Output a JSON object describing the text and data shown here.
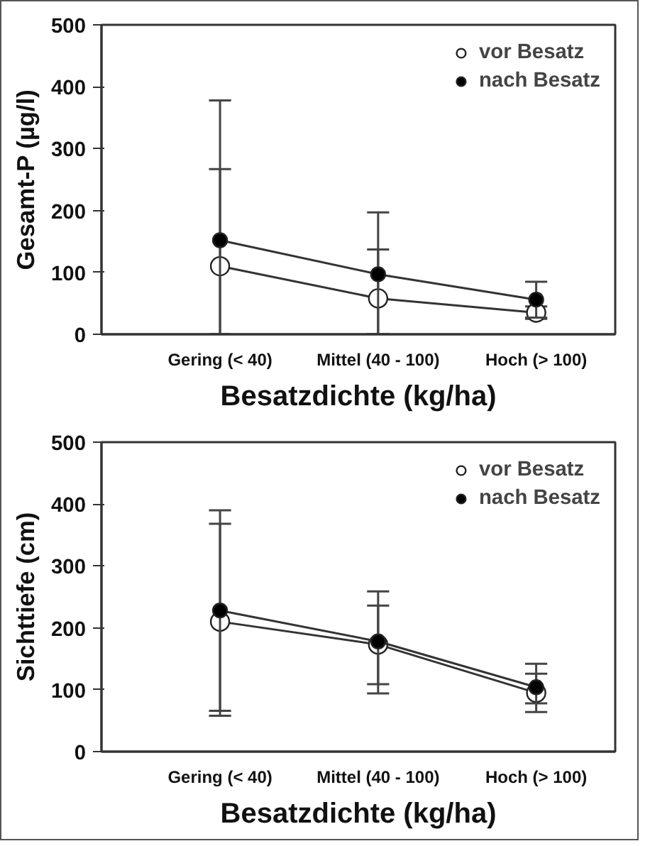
{
  "chart_data": [
    {
      "type": "line",
      "xlabel": "Besatzdichte (kg/ha)",
      "ylabel": "Gesamt-P (µg/l)",
      "categories": [
        "Gering (< 40)",
        "Mittel (40 - 100)",
        "Hoch (> 100)"
      ],
      "ylim": [
        0,
        500
      ],
      "yticks": [
        0,
        100,
        200,
        300,
        400,
        500
      ],
      "grid": false,
      "legend": "top right",
      "marker": "circle",
      "line_style": "solid",
      "series": [
        {
          "name": "vor Besatz",
          "color": "#ffffff",
          "values": [
            110,
            58,
            35
          ],
          "errors": [
            [
              0,
              267
            ],
            [
              0,
              137
            ],
            [
              25,
              45
            ]
          ]
        },
        {
          "name": "nach Besatz",
          "color": "#000000",
          "values": [
            152,
            97,
            56
          ],
          "errors": [
            [
              0,
              378
            ],
            [
              0,
              197
            ],
            [
              27,
              85
            ]
          ]
        }
      ]
    },
    {
      "type": "line",
      "xlabel": "Besatzdichte (kg/ha)",
      "ylabel": "Sichttiefe (cm)",
      "categories": [
        "Gering (< 40)",
        "Mittel (40 - 100)",
        "Hoch (> 100)"
      ],
      "ylim": [
        0,
        500
      ],
      "yticks": [
        0,
        100,
        200,
        300,
        400,
        500
      ],
      "grid": false,
      "legend": "top right",
      "marker": "circle",
      "line_style": "solid",
      "series": [
        {
          "name": "vor Besatz",
          "color": "#ffffff",
          "values": [
            210,
            173,
            95
          ],
          "errors": [
            [
              58,
              368
            ],
            [
              109,
              236
            ],
            [
              78,
              126
            ]
          ]
        },
        {
          "name": "nach Besatz",
          "color": "#000000",
          "values": [
            228,
            178,
            104
          ],
          "errors": [
            [
              66,
              390
            ],
            [
              94,
              259
            ],
            [
              64,
              142
            ]
          ]
        }
      ]
    }
  ]
}
